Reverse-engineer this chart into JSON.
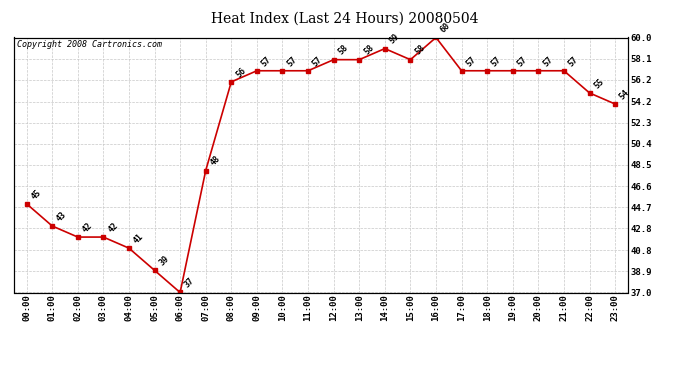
{
  "title": "Heat Index (Last 24 Hours) 20080504",
  "copyright": "Copyright 2008 Cartronics.com",
  "hours": [
    "00:00",
    "01:00",
    "02:00",
    "03:00",
    "04:00",
    "05:00",
    "06:00",
    "07:00",
    "08:00",
    "09:00",
    "10:00",
    "11:00",
    "12:00",
    "13:00",
    "14:00",
    "15:00",
    "16:00",
    "17:00",
    "18:00",
    "19:00",
    "20:00",
    "21:00",
    "22:00",
    "23:00"
  ],
  "values": [
    45,
    43,
    42,
    42,
    41,
    39,
    37,
    48,
    56,
    57,
    57,
    57,
    58,
    58,
    59,
    58,
    60,
    57,
    57,
    57,
    57,
    57,
    55,
    54
  ],
  "point_labels": [
    "45",
    "43",
    "42",
    "42",
    "41",
    "39",
    "37",
    "48",
    "56",
    "57",
    "57",
    "57",
    "58",
    "58",
    "59",
    "58",
    "60",
    "57",
    "57",
    "57",
    "57",
    "57",
    "55",
    "54"
  ],
  "ylim": [
    37.0,
    60.0
  ],
  "yticks": [
    37.0,
    38.9,
    40.8,
    42.8,
    44.7,
    46.6,
    48.5,
    50.4,
    52.3,
    54.2,
    56.2,
    58.1,
    60.0
  ],
  "line_color": "#cc0000",
  "marker_color": "#cc0000",
  "background_color": "#ffffff",
  "grid_color": "#c8c8c8",
  "title_fontsize": 10,
  "label_fontsize": 6,
  "tick_fontsize": 6.5,
  "copyright_fontsize": 6
}
